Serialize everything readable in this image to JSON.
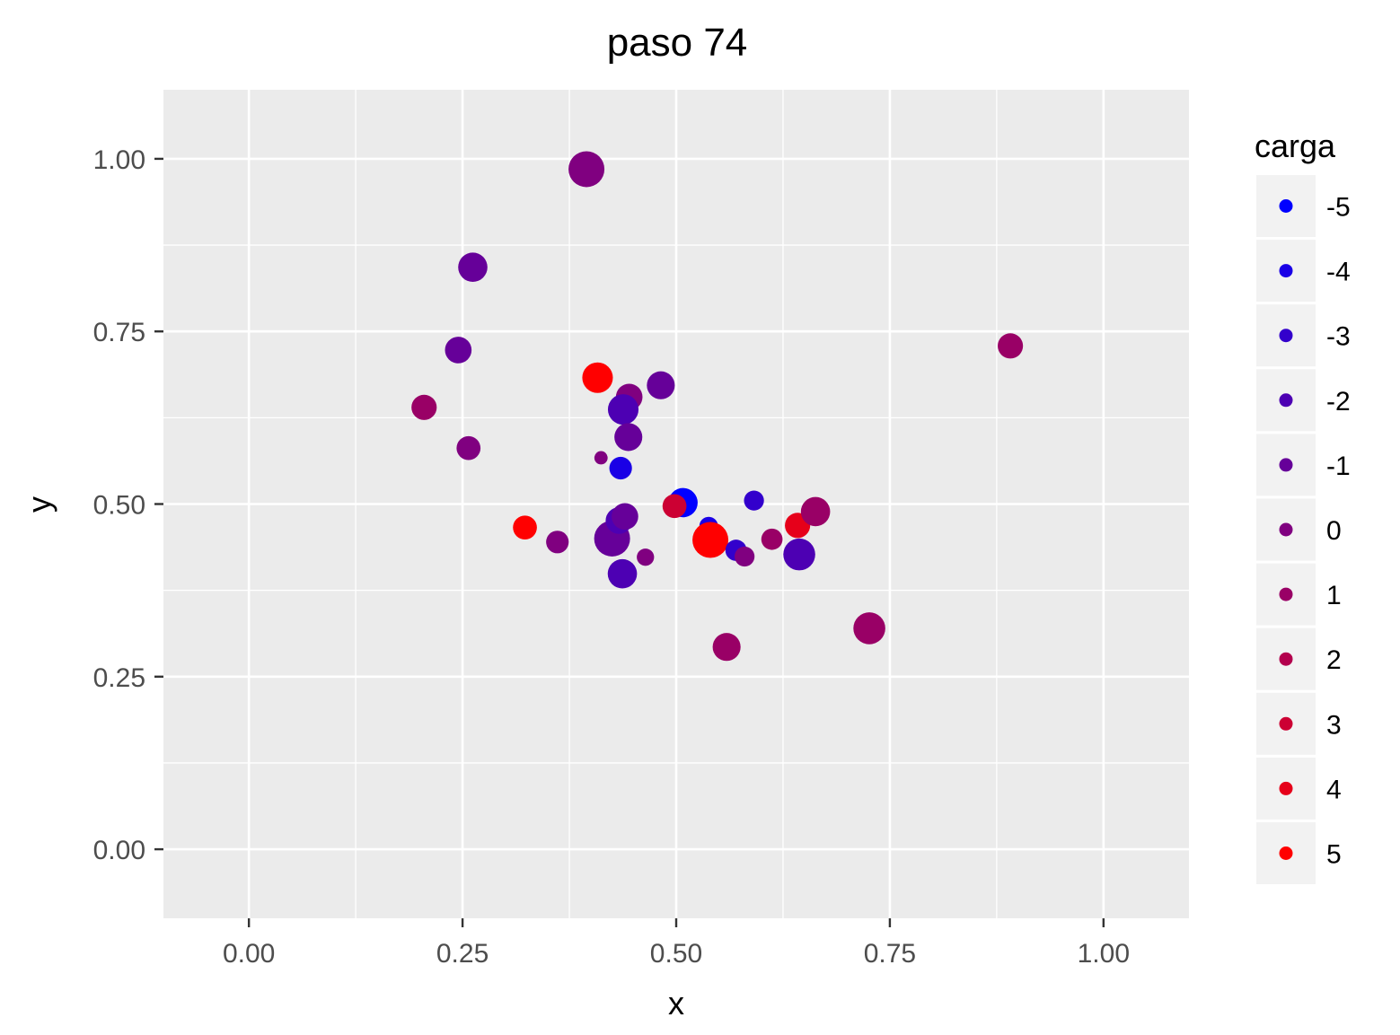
{
  "chart_data": {
    "type": "scatter",
    "title": "paso 74",
    "xlabel": "x",
    "ylabel": "y",
    "xlim": [
      -0.1,
      1.1
    ],
    "ylim": [
      -0.1,
      1.1
    ],
    "x_ticks": [
      0,
      0.25,
      0.5,
      0.75,
      1
    ],
    "x_tick_labels": [
      "0.00",
      "0.25",
      "0.50",
      "0.75",
      "1.00"
    ],
    "y_ticks": [
      0,
      0.25,
      0.5,
      0.75,
      1
    ],
    "y_tick_labels": [
      "0.00",
      "0.25",
      "0.50",
      "0.75",
      "1.00"
    ],
    "grid": true,
    "legend": {
      "title": "carga",
      "position": "right",
      "items": [
        {
          "label": "-5",
          "value": -5,
          "color": "#0000FF"
        },
        {
          "label": "-4",
          "value": -4,
          "color": "#1A00E6"
        },
        {
          "label": "-3",
          "value": -3,
          "color": "#3300CC"
        },
        {
          "label": "-2",
          "value": -2,
          "color": "#4D00B3"
        },
        {
          "label": "-1",
          "value": -1,
          "color": "#660099"
        },
        {
          "label": "0",
          "value": 0,
          "color": "#800080"
        },
        {
          "label": "1",
          "value": 1,
          "color": "#990066"
        },
        {
          "label": "2",
          "value": 2,
          "color": "#B3004D"
        },
        {
          "label": "3",
          "value": 3,
          "color": "#CC0033"
        },
        {
          "label": "4",
          "value": 4,
          "color": "#E6001A"
        },
        {
          "label": "5",
          "value": 5,
          "color": "#FF0000"
        }
      ]
    },
    "points": [
      {
        "x": 0.395,
        "y": 0.985,
        "carga": 0,
        "size": 27
      },
      {
        "x": 0.262,
        "y": 0.843,
        "carga": -1,
        "size": 22
      },
      {
        "x": 0.245,
        "y": 0.723,
        "carga": -1,
        "size": 20
      },
      {
        "x": 0.205,
        "y": 0.64,
        "carga": 1,
        "size": 19
      },
      {
        "x": 0.257,
        "y": 0.581,
        "carga": 0,
        "size": 18
      },
      {
        "x": 0.408,
        "y": 0.683,
        "carga": 5,
        "size": 23
      },
      {
        "x": 0.445,
        "y": 0.655,
        "carga": 0,
        "size": 20
      },
      {
        "x": 0.482,
        "y": 0.672,
        "carga": -1,
        "size": 21
      },
      {
        "x": 0.438,
        "y": 0.637,
        "carga": -2,
        "size": 23
      },
      {
        "x": 0.444,
        "y": 0.597,
        "carga": -1,
        "size": 21
      },
      {
        "x": 0.412,
        "y": 0.567,
        "carga": 0,
        "size": 10
      },
      {
        "x": 0.435,
        "y": 0.552,
        "carga": -4,
        "size": 17
      },
      {
        "x": 0.508,
        "y": 0.502,
        "carga": -5,
        "size": 22
      },
      {
        "x": 0.498,
        "y": 0.497,
        "carga": 3,
        "size": 18
      },
      {
        "x": 0.591,
        "y": 0.505,
        "carga": -3,
        "size": 15
      },
      {
        "x": 0.538,
        "y": 0.468,
        "carga": -4,
        "size": 14
      },
      {
        "x": 0.54,
        "y": 0.448,
        "carga": 5,
        "size": 27
      },
      {
        "x": 0.323,
        "y": 0.466,
        "carga": 5,
        "size": 18
      },
      {
        "x": 0.361,
        "y": 0.445,
        "carga": 0,
        "size": 17
      },
      {
        "x": 0.425,
        "y": 0.45,
        "carga": -1,
        "size": 27
      },
      {
        "x": 0.433,
        "y": 0.476,
        "carga": -2,
        "size": 20
      },
      {
        "x": 0.44,
        "y": 0.482,
        "carga": -1,
        "size": 20
      },
      {
        "x": 0.464,
        "y": 0.423,
        "carga": 0,
        "size": 13
      },
      {
        "x": 0.437,
        "y": 0.399,
        "carga": -2,
        "size": 22
      },
      {
        "x": 0.57,
        "y": 0.433,
        "carga": -3,
        "size": 16
      },
      {
        "x": 0.58,
        "y": 0.424,
        "carga": 0,
        "size": 15
      },
      {
        "x": 0.612,
        "y": 0.449,
        "carga": 1,
        "size": 16
      },
      {
        "x": 0.642,
        "y": 0.469,
        "carga": 4,
        "size": 19
      },
      {
        "x": 0.663,
        "y": 0.489,
        "carga": 1,
        "size": 22
      },
      {
        "x": 0.644,
        "y": 0.427,
        "carga": -2,
        "size": 24
      },
      {
        "x": 0.726,
        "y": 0.32,
        "carga": 1,
        "size": 24
      },
      {
        "x": 0.559,
        "y": 0.293,
        "carga": 1,
        "size": 21
      },
      {
        "x": 0.891,
        "y": 0.729,
        "carga": 1,
        "size": 19
      }
    ]
  }
}
